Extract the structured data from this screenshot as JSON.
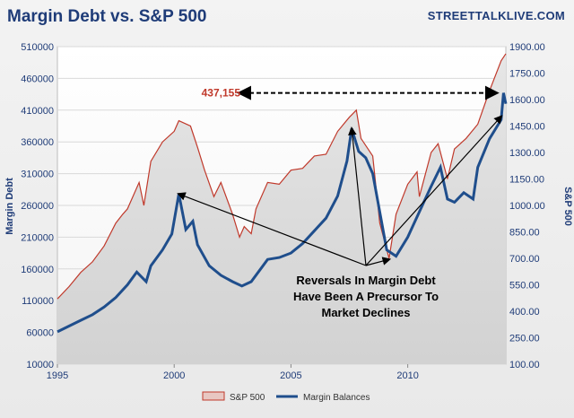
{
  "chart_data": {
    "type": "line",
    "title": "Margin Debt vs. S&P 500",
    "source": "STREETTALKLIVE.COM",
    "xlabel": "",
    "ylabel_left": "Margin Debt",
    "ylabel_right": "S&P 500",
    "xlim": [
      1995,
      2014.2
    ],
    "ylim_left": [
      10000,
      510000
    ],
    "ylim_right": [
      100,
      1900
    ],
    "x_ticks": [
      "1995",
      "2000",
      "2005",
      "2010"
    ],
    "y_ticks_left": [
      "10000",
      "60000",
      "110000",
      "160000",
      "210000",
      "260000",
      "310000",
      "360000",
      "410000",
      "460000",
      "510000"
    ],
    "y_ticks_right": [
      "100.00",
      "250.00",
      "400.00",
      "550.00",
      "700.00",
      "850.00",
      "1000.00",
      "1150.00",
      "1300.00",
      "1450.00",
      "1600.00",
      "1750.00",
      "1900.00"
    ],
    "legend": [
      "S&P 500",
      "Margin Balances"
    ],
    "legend_position": "bottom",
    "series": [
      {
        "name": "S&P 500",
        "axis": "right",
        "color": "#c0392b",
        "x": [
          1995,
          1995.5,
          1996,
          1996.5,
          1997,
          1997.5,
          1997.8,
          1998,
          1998.5,
          1998.7,
          1999,
          1999.5,
          2000,
          2000.2,
          2000.7,
          2001,
          2001.3,
          2001.7,
          2002,
          2002.5,
          2002.8,
          2003,
          2003.3,
          2003.5,
          2004,
          2004.5,
          2005,
          2005.5,
          2006,
          2006.5,
          2007,
          2007.5,
          2007.8,
          2008,
          2008.5,
          2008.8,
          2009,
          2009.2,
          2009.5,
          2010,
          2010.4,
          2010.5,
          2011,
          2011.3,
          2011.7,
          2012,
          2012.5,
          2013,
          2013.5,
          2014,
          2014.2
        ],
        "values": [
          470,
          540,
          620,
          680,
          770,
          900,
          950,
          980,
          1130,
          1000,
          1250,
          1360,
          1420,
          1480,
          1450,
          1330,
          1200,
          1050,
          1130,
          950,
          820,
          880,
          840,
          980,
          1130,
          1120,
          1200,
          1210,
          1280,
          1290,
          1420,
          1500,
          1540,
          1380,
          1280,
          900,
          800,
          700,
          950,
          1120,
          1190,
          1050,
          1300,
          1350,
          1150,
          1320,
          1380,
          1460,
          1650,
          1820,
          1860
        ]
      },
      {
        "name": "Margin Balances",
        "axis": "left",
        "color": "#1f4e8c",
        "x": [
          1995,
          1995.5,
          1996,
          1996.5,
          1997,
          1997.5,
          1998,
          1998.4,
          1998.8,
          1999,
          1999.5,
          1999.9,
          2000.2,
          2000.5,
          2000.8,
          2001,
          2001.5,
          2002,
          2002.5,
          2002.9,
          2003.3,
          2003.8,
          2004,
          2004.5,
          2005,
          2005.5,
          2006,
          2006.5,
          2007,
          2007.4,
          2007.6,
          2007.9,
          2008.2,
          2008.5,
          2008.8,
          2009.1,
          2009.5,
          2010,
          2010.5,
          2011,
          2011.4,
          2011.7,
          2012,
          2012.4,
          2012.8,
          2013,
          2013.5,
          2014,
          2014.1,
          2014.2
        ],
        "values": [
          61000,
          70000,
          79000,
          88000,
          100000,
          115000,
          135000,
          155000,
          140000,
          165000,
          190000,
          215000,
          278000,
          222000,
          235000,
          198000,
          165000,
          150000,
          140000,
          133000,
          140000,
          165000,
          175000,
          178000,
          185000,
          200000,
          220000,
          240000,
          275000,
          330000,
          381000,
          345000,
          335000,
          310000,
          250000,
          190000,
          180000,
          210000,
          250000,
          290000,
          320000,
          270000,
          265000,
          280000,
          270000,
          320000,
          365000,
          395000,
          437155,
          420000
        ]
      }
    ],
    "annotations": [
      {
        "text_lines": [
          "Reversals In Margin Debt",
          "Have Been A Precursor To",
          "Market Declines"
        ],
        "points_to": [
          [
            2000.2,
            278000
          ],
          [
            2007.6,
            381000
          ],
          [
            2009.2,
            175000
          ],
          [
            2014.0,
            400000
          ]
        ]
      },
      {
        "text": "437,155",
        "refers_to_value": 437155
      }
    ]
  }
}
